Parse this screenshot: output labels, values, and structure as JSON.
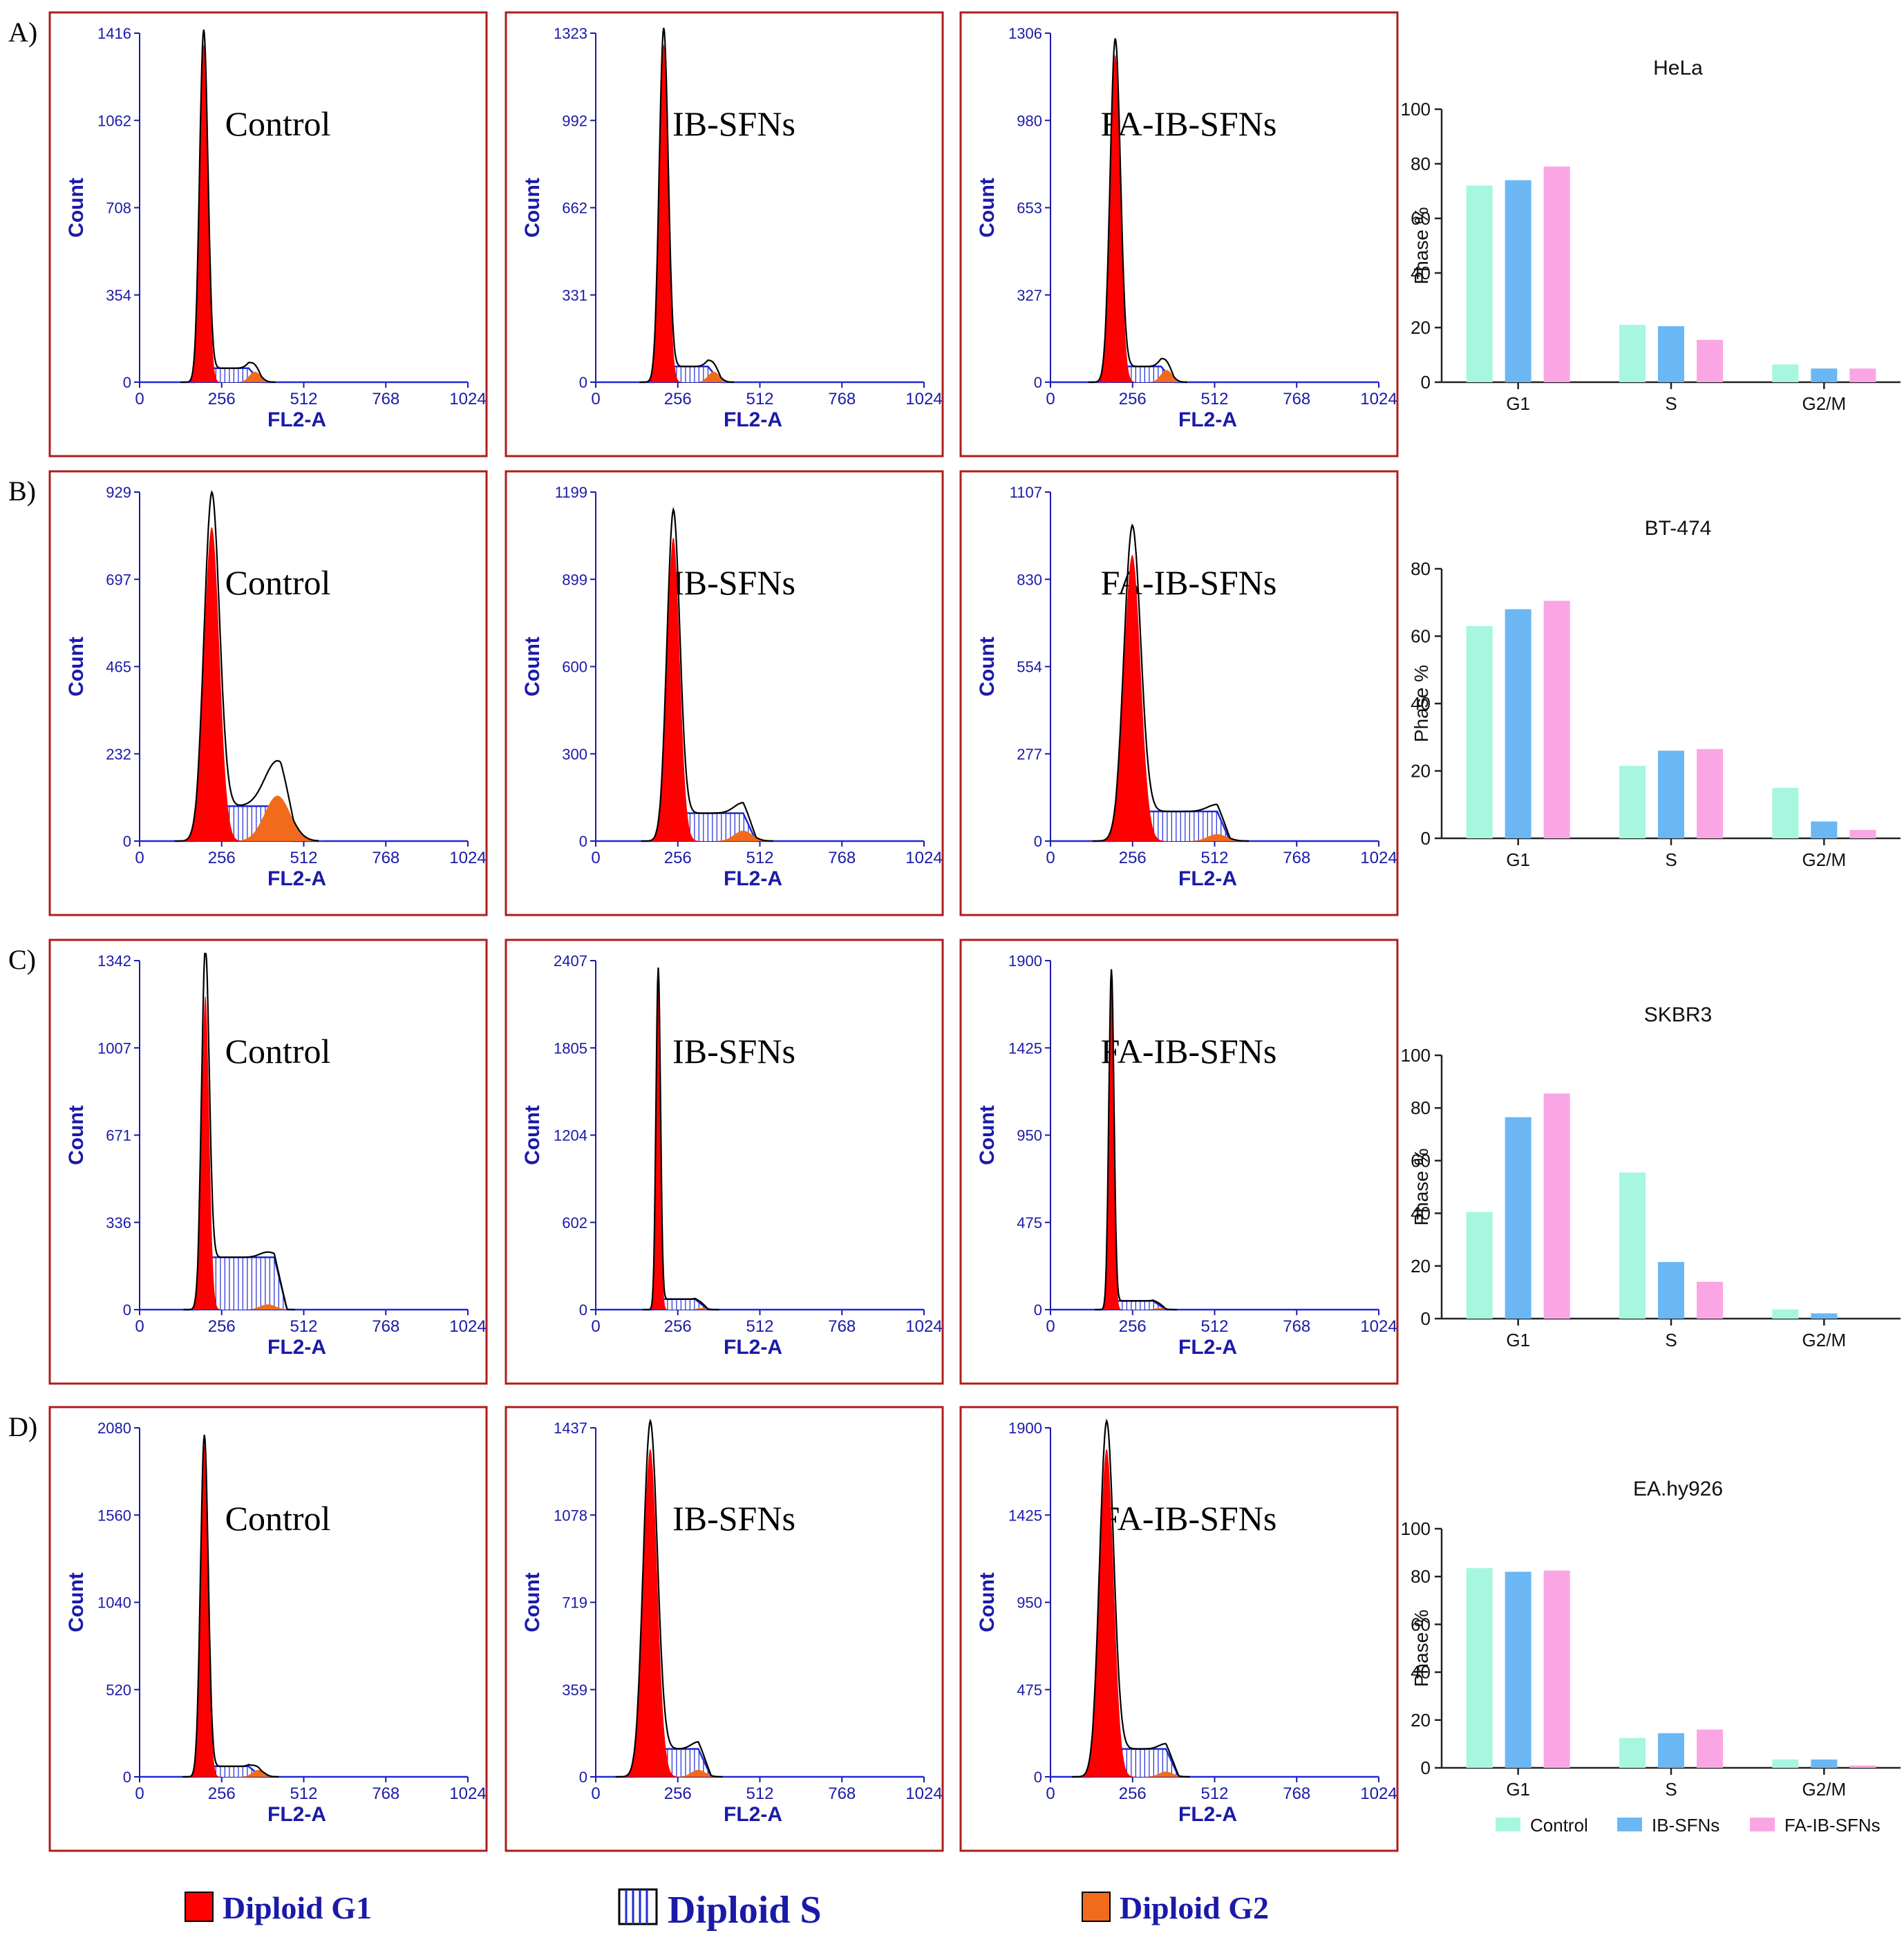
{
  "figure": {
    "legend": [
      {
        "key": "g1",
        "label": "Diploid G1",
        "color": "#ff0000"
      },
      {
        "key": "s",
        "label": "Diploid S",
        "color": "#ffffff"
      },
      {
        "key": "g2",
        "label": "Diploid G2",
        "color": "#f26b1d"
      }
    ],
    "colors": {
      "panel_border": "#b01c1c",
      "axis_text": "#1a1aa8",
      "g1": "#ff0000",
      "s_line": "#1f2bd6",
      "g2": "#f26b1d",
      "envelope": "#000000"
    }
  },
  "chart_data": {
    "histograms": {
      "type": "histogram-grid",
      "x_label": "FL2-A",
      "y_label": "Count",
      "x_ticks": [
        "0",
        "256",
        "512",
        "768",
        "1024"
      ],
      "rows": [
        {
          "row_label": "A)",
          "panels": [
            {
              "condition": "Control",
              "y_ticks": [
                "0",
                "354",
                "708",
                "1062",
                "1416"
              ],
              "g1_peak": 200,
              "g1_width": 13,
              "g1_height": 0.97,
              "s_level": 0.04,
              "s_end": 380,
              "g2_peak": 360,
              "g2_height": 0.03,
              "g2_width": 18
            },
            {
              "condition": "IB-SFNs",
              "y_ticks": [
                "0",
                "331",
                "662",
                "992",
                "1323"
              ],
              "g1_peak": 212,
              "g1_width": 14,
              "g1_height": 0.97,
              "s_level": 0.045,
              "s_end": 390,
              "g2_peak": 368,
              "g2_height": 0.03,
              "g2_width": 18
            },
            {
              "condition": "FA-IB-SFNs",
              "y_ticks": [
                "0",
                "327",
                "653",
                "980",
                "1306"
              ],
              "g1_peak": 202,
              "g1_width": 16,
              "g1_height": 0.94,
              "s_level": 0.045,
              "s_end": 385,
              "g2_peak": 362,
              "g2_height": 0.035,
              "g2_width": 18
            }
          ]
        },
        {
          "row_label": "B)",
          "panels": [
            {
              "condition": "Control",
              "y_ticks": [
                "0",
                "232",
                "465",
                "697",
                "929"
              ],
              "g1_peak": 225,
              "g1_width": 24,
              "g1_height": 0.9,
              "s_level": 0.1,
              "s_end": 480,
              "g2_peak": 430,
              "g2_height": 0.13,
              "g2_width": 40
            },
            {
              "condition": "IB-SFNs",
              "y_ticks": [
                "0",
                "300",
                "600",
                "899",
                "1199"
              ],
              "g1_peak": 242,
              "g1_width": 20,
              "g1_height": 0.87,
              "s_level": 0.08,
              "s_end": 500,
              "g2_peak": 460,
              "g2_height": 0.03,
              "g2_width": 28
            },
            {
              "condition": "FA-IB-SFNs",
              "y_ticks": [
                "0",
                "277",
                "554",
                "830",
                "1107"
              ],
              "g1_peak": 255,
              "g1_width": 26,
              "g1_height": 0.82,
              "s_level": 0.085,
              "s_end": 560,
              "g2_peak": 520,
              "g2_height": 0.02,
              "g2_width": 30
            }
          ]
        },
        {
          "row_label": "C)",
          "panels": [
            {
              "condition": "Control",
              "y_ticks": [
                "0",
                "336",
                "671",
                "1007",
                "1342"
              ],
              "g1_peak": 205,
              "g1_width": 12,
              "g1_height": 0.9,
              "s_level": 0.15,
              "s_end": 460,
              "g2_peak": 400,
              "g2_height": 0.015,
              "g2_width": 25
            },
            {
              "condition": "IB-SFNs",
              "y_ticks": [
                "0",
                "602",
                "1204",
                "1805",
                "2407"
              ],
              "g1_peak": 195,
              "g1_width": 7,
              "g1_height": 0.95,
              "s_level": 0.03,
              "s_end": 350,
              "g2_peak": 330,
              "g2_height": 0.005,
              "g2_width": 15
            },
            {
              "condition": "FA-IB-SFNs",
              "y_ticks": [
                "0",
                "475",
                "950",
                "1425",
                "1900"
              ],
              "g1_peak": 190,
              "g1_width": 8,
              "g1_height": 0.95,
              "s_level": 0.025,
              "s_end": 360,
              "g2_peak": 340,
              "g2_height": 0.005,
              "g2_width": 15
            }
          ]
        },
        {
          "row_label": "D)",
          "panels": [
            {
              "condition": "Control",
              "y_ticks": [
                "0",
                "520",
                "1040",
                "1560",
                "2080"
              ],
              "g1_peak": 202,
              "g1_width": 12,
              "g1_height": 0.95,
              "s_level": 0.03,
              "s_end": 380,
              "g2_peak": 370,
              "g2_height": 0.02,
              "g2_width": 18
            },
            {
              "condition": "IB-SFNs",
              "y_ticks": [
                "0",
                "359",
                "719",
                "1078",
                "1437"
              ],
              "g1_peak": 170,
              "g1_width": 22,
              "g1_height": 0.94,
              "s_level": 0.08,
              "s_end": 360,
              "g2_peak": 320,
              "g2_height": 0.02,
              "g2_width": 22
            },
            {
              "condition": "FA-IB-SFNs",
              "y_ticks": [
                "0",
                "475",
                "950",
                "1425",
                "1900"
              ],
              "g1_peak": 175,
              "g1_width": 22,
              "g1_height": 0.94,
              "s_level": 0.08,
              "s_end": 400,
              "g2_peak": 360,
              "g2_height": 0.015,
              "g2_width": 22
            }
          ]
        }
      ]
    },
    "bar_charts": [
      {
        "type": "bar",
        "title": "HeLa",
        "ylabel": "Phase %",
        "categories": [
          "G1",
          "S",
          "G2/M"
        ],
        "ylim": [
          0,
          100
        ],
        "yticks": [
          0,
          20,
          40,
          60,
          80,
          100
        ],
        "series": [
          {
            "name": "Control",
            "values": [
              72,
              21,
              6.5
            ]
          },
          {
            "name": "IB-SFNs",
            "values": [
              74,
              20.5,
              5
            ]
          },
          {
            "name": "FA-IB-SFNs",
            "values": [
              79,
              15.5,
              5
            ]
          }
        ]
      },
      {
        "type": "bar",
        "title": "BT-474",
        "ylabel": "Phase %",
        "categories": [
          "G1",
          "S",
          "G2/M"
        ],
        "ylim": [
          0,
          80
        ],
        "yticks": [
          0,
          20,
          40,
          60,
          80
        ],
        "series": [
          {
            "name": "Control",
            "values": [
              63,
              21.5,
              15
            ]
          },
          {
            "name": "IB-SFNs",
            "values": [
              68,
              26,
              5
            ]
          },
          {
            "name": "FA-IB-SFNs",
            "values": [
              70.5,
              26.5,
              2.5
            ]
          }
        ]
      },
      {
        "type": "bar",
        "title": "SKBR3",
        "ylabel": "Phase %",
        "categories": [
          "G1",
          "S",
          "G2/M"
        ],
        "ylim": [
          0,
          100
        ],
        "yticks": [
          0,
          20,
          40,
          60,
          80,
          100
        ],
        "series": [
          {
            "name": "Control",
            "values": [
              40.5,
              55.5,
              3.5
            ]
          },
          {
            "name": "IB-SFNs",
            "values": [
              76.5,
              21.5,
              2
            ]
          },
          {
            "name": "FA-IB-SFNs",
            "values": [
              85.5,
              14,
              0
            ]
          }
        ]
      },
      {
        "type": "bar",
        "title": "EA.hy926",
        "ylabel": "Phase %",
        "categories": [
          "G1",
          "S",
          "G2/M"
        ],
        "ylim": [
          0,
          100
        ],
        "yticks": [
          0,
          20,
          40,
          60,
          80,
          100
        ],
        "series": [
          {
            "name": "Control",
            "values": [
              83.5,
              12.5,
              3.5
            ]
          },
          {
            "name": "IB-SFNs",
            "values": [
              82,
              14.5,
              3.5
            ]
          },
          {
            "name": "FA-IB-SFNs",
            "values": [
              82.5,
              16,
              1
            ]
          }
        ]
      }
    ],
    "bar_legend": [
      {
        "name": "Control",
        "color": "#a6f6e0"
      },
      {
        "name": "IB-SFNs",
        "color": "#6bb7f4"
      },
      {
        "name": "FA-IB-SFNs",
        "color": "#fba6e4"
      }
    ]
  }
}
